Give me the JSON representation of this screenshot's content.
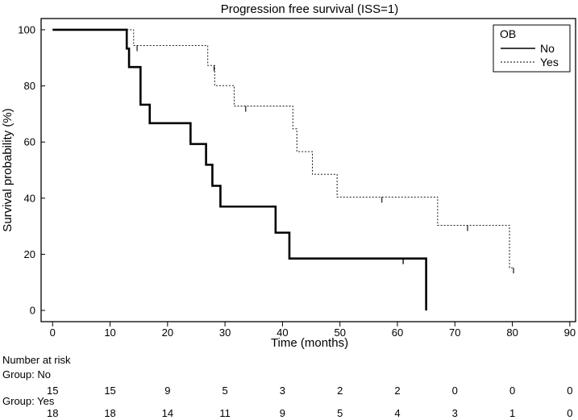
{
  "chart_data": {
    "type": "line",
    "subtype": "kaplan-meier",
    "title": "Progression free survival (ISS=1)",
    "xlabel": "Time (months)",
    "ylabel": "Survival probability (%)",
    "xlim": [
      -2,
      91
    ],
    "ylim": [
      -4,
      104
    ],
    "xticks": [
      0,
      10,
      20,
      30,
      40,
      50,
      60,
      70,
      80,
      90
    ],
    "yticks": [
      0,
      20,
      40,
      60,
      80,
      100
    ],
    "legend": {
      "title": "OB",
      "position": "top-right",
      "entries": [
        {
          "label": "No",
          "style": "solid"
        },
        {
          "label": "Yes",
          "style": "dashed"
        }
      ]
    },
    "series": [
      {
        "name": "No",
        "style": "solid",
        "color": "#000000",
        "steps": [
          [
            0,
            100
          ],
          [
            12.9,
            93.3
          ],
          [
            13.3,
            86.7
          ],
          [
            15.3,
            73.3
          ],
          [
            16.9,
            66.7
          ],
          [
            24,
            59.3
          ],
          [
            26.7,
            51.9
          ],
          [
            27.8,
            44.4
          ],
          [
            29.2,
            37
          ],
          [
            38.8,
            27.7
          ],
          [
            41.2,
            18.5
          ],
          [
            65,
            0
          ]
        ],
        "end": 65,
        "censored": [
          [
            61,
            18.5
          ]
        ]
      },
      {
        "name": "Yes",
        "style": "dashed",
        "color": "#000000",
        "steps": [
          [
            0,
            100
          ],
          [
            14.1,
            94.4
          ],
          [
            27,
            87.3
          ],
          [
            28.2,
            80.1
          ],
          [
            31.6,
            72.8
          ],
          [
            41.8,
            64.7
          ],
          [
            42.5,
            56.6
          ],
          [
            45.2,
            48.5
          ],
          [
            49.5,
            40.4
          ],
          [
            67,
            30.3
          ],
          [
            79.5,
            15.2
          ]
        ],
        "end": 80.3,
        "censored": [
          [
            14.7,
            94.4
          ],
          [
            28.1,
            87.3
          ],
          [
            33.6,
            72.8
          ],
          [
            57.3,
            40.4
          ],
          [
            72.2,
            30.3
          ],
          [
            80.2,
            15.2
          ]
        ]
      }
    ],
    "risk_table": {
      "heading": "Number at risk",
      "times": [
        0,
        10,
        20,
        30,
        40,
        50,
        60,
        70,
        80,
        90
      ],
      "groups": [
        {
          "label": "Group: No",
          "values": [
            "15",
            "15",
            "9",
            "5",
            "3",
            "2",
            "2",
            "0",
            "0",
            "0"
          ]
        },
        {
          "label": "Group: Yes",
          "values": [
            "18",
            "18",
            "14",
            "11",
            "9",
            "5",
            "4",
            "3",
            "1",
            "0"
          ]
        }
      ]
    }
  }
}
